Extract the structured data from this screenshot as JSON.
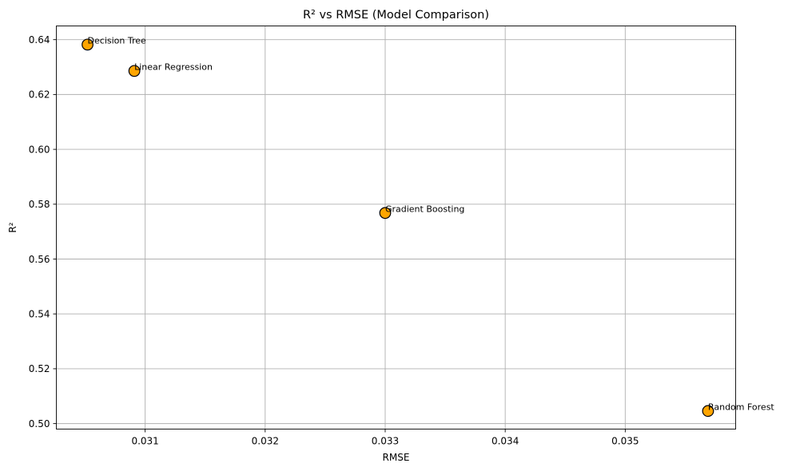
{
  "chart_data": {
    "type": "scatter",
    "title": "R² vs RMSE (Model Comparison)",
    "xlabel": "RMSE",
    "ylabel": "R²",
    "xlim": [
      0.03026,
      0.03592
    ],
    "ylim": [
      0.498,
      0.645
    ],
    "xticks": [
      "0.031",
      "0.032",
      "0.033",
      "0.034",
      "0.035"
    ],
    "yticks": [
      "0.50",
      "0.52",
      "0.54",
      "0.56",
      "0.58",
      "0.60",
      "0.62",
      "0.64"
    ],
    "grid": true,
    "marker_color": "#FFA500",
    "marker_edge_color": "#000000",
    "points": [
      {
        "label": "Decision Tree",
        "x": 0.03052,
        "y": 0.6382
      },
      {
        "label": "Linear Regression",
        "x": 0.03091,
        "y": 0.6286
      },
      {
        "label": "Gradient Boosting",
        "x": 0.033,
        "y": 0.5768
      },
      {
        "label": "Random Forest",
        "x": 0.03569,
        "y": 0.5046
      }
    ]
  }
}
